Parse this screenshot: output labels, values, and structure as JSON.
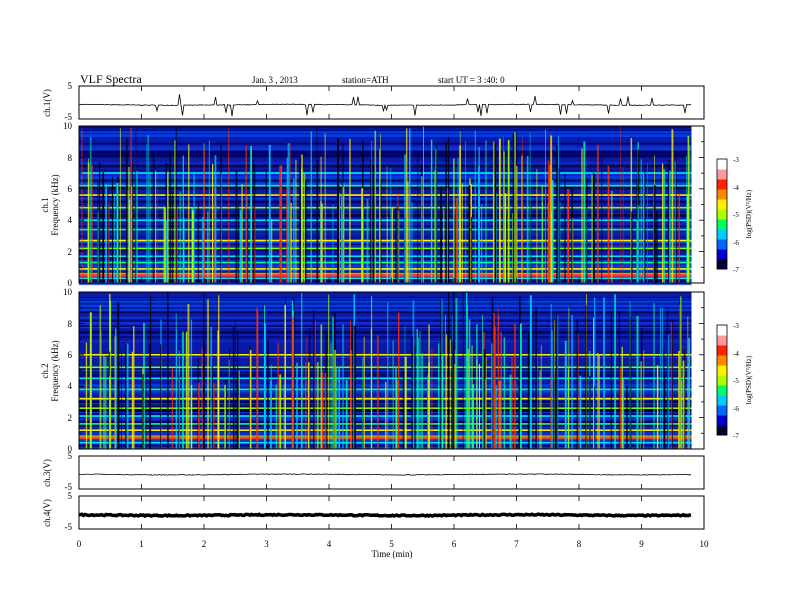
{
  "header": {
    "title": "VLF Spectra",
    "date": "Jan. 3 , 2013",
    "station": "station=ATH",
    "start": "start UT = 3 :40: 0"
  },
  "chart_data": [
    {
      "type": "line",
      "panel": "ch1-waveform",
      "ylabel": "ch.1(V)",
      "ylim": [
        -5,
        5
      ],
      "ytick_labels": [
        "5",
        "-5"
      ],
      "xlim": [
        0,
        10
      ],
      "series": [
        {
          "level": -0.7,
          "noise": "small",
          "spikes": "frequent"
        }
      ],
      "x_end": 9.8
    },
    {
      "type": "heatmap",
      "panel": "ch1-spectrogram",
      "ylabel_lines": [
        "ch.1",
        "Frequency (kHz)"
      ],
      "ylim": [
        0,
        10
      ],
      "ytick_labels": [
        "0",
        "2",
        "4",
        "6",
        "8",
        "10"
      ],
      "xlim": [
        0,
        10
      ],
      "x_end": 9.8,
      "colorbar": {
        "label": "log(PSD)(V²/Hz)",
        "range": [
          -7,
          -3
        ],
        "tick_labels": [
          "-3",
          "-4",
          "-5",
          "-6",
          "-7"
        ],
        "colors": [
          "#000033",
          "#0000cc",
          "#0066ff",
          "#00ccff",
          "#00ff66",
          "#aaff00",
          "#ffee00",
          "#ff8800",
          "#ff2200",
          "#ff9999",
          "#ffffff"
        ]
      },
      "bands_khz": [
        0.3,
        0.6,
        0.9,
        1.3,
        1.7,
        2.2,
        2.7,
        3.4,
        4.0,
        4.8,
        5.6,
        6.2,
        7.0
      ],
      "bright_band_khz": 0.5,
      "sferic_density": "high"
    },
    {
      "type": "heatmap",
      "panel": "ch2-spectrogram",
      "ylabel_lines": [
        "ch.2",
        "Frequency (kHz)"
      ],
      "ylim": [
        0,
        10
      ],
      "ytick_labels": [
        "0",
        "2",
        "4",
        "6",
        "8",
        "10"
      ],
      "xlim": [
        0,
        10
      ],
      "x_end": 9.8,
      "colorbar": {
        "label": "log(PSD)(V²/Hz)",
        "range": [
          -7,
          -3
        ],
        "tick_labels": [
          "-3",
          "-4",
          "-5",
          "-6",
          "-7"
        ],
        "colors": [
          "#000033",
          "#0000cc",
          "#0066ff",
          "#00ccff",
          "#00ff66",
          "#aaff00",
          "#ffee00",
          "#ff8800",
          "#ff2200",
          "#ff9999",
          "#ffffff"
        ]
      },
      "bands_khz": [
        0.4,
        0.8,
        1.2,
        1.6,
        2.1,
        2.6,
        3.2,
        3.8,
        4.5,
        5.2,
        6.0
      ],
      "bright_band_khz": 0.7,
      "sferic_density": "high"
    },
    {
      "type": "line",
      "panel": "ch3-waveform",
      "ylabel": "ch.3(V)",
      "ylim": [
        -5,
        5
      ],
      "ytick_labels": [
        "5",
        "-5"
      ],
      "xlim": [
        0,
        10
      ],
      "series": [
        {
          "level": -0.6,
          "noise": "small",
          "spikes": "none"
        }
      ],
      "x_end": 9.8
    },
    {
      "type": "line",
      "panel": "ch4-waveform",
      "ylabel": "ch.4(V)",
      "ylim": [
        -5,
        5
      ],
      "ytick_labels": [
        "5",
        "-5"
      ],
      "xlim": [
        0,
        10
      ],
      "series": [
        {
          "level": -0.8,
          "noise": "thick",
          "spikes": "none"
        }
      ],
      "x_end": 9.8,
      "xlabel": "Time (min)",
      "xtick_labels": [
        "0",
        "1",
        "2",
        "3",
        "4",
        "5",
        "6",
        "7",
        "8",
        "9",
        "10"
      ]
    }
  ]
}
